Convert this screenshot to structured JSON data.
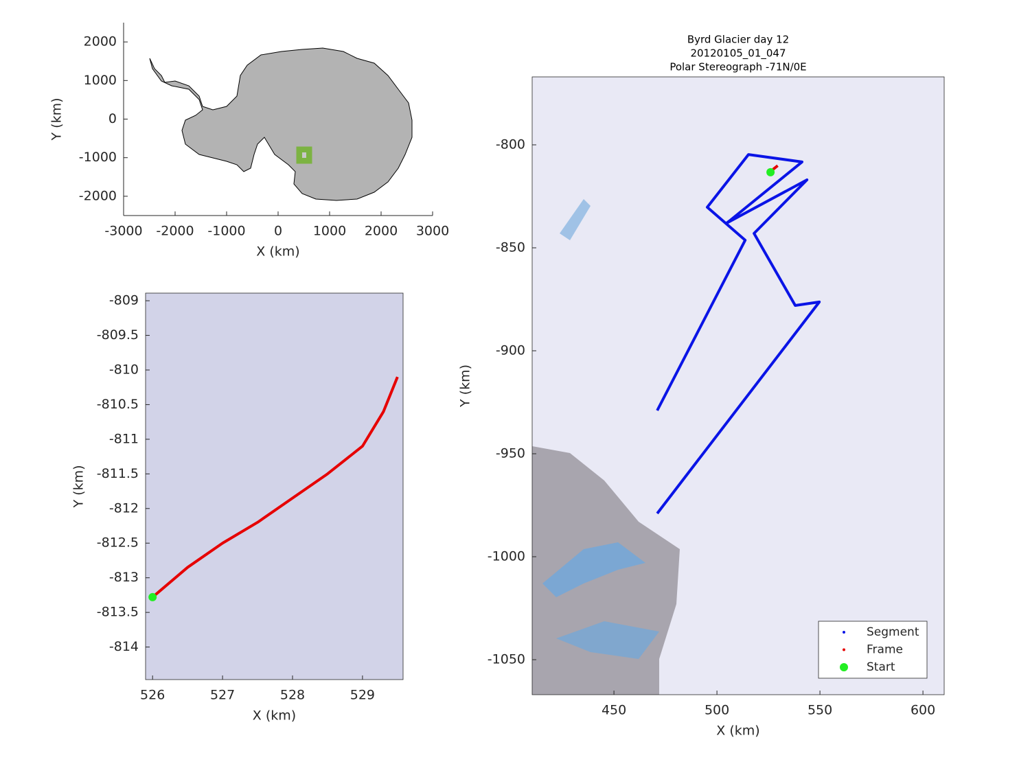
{
  "chart_data": [
    {
      "type": "map",
      "xlabel": "X (km)",
      "ylabel": "Y (km)",
      "xlim": [
        -3000,
        3000
      ],
      "ylim": [
        -2500,
        2500
      ],
      "xticks": [
        -3000,
        -2000,
        -1000,
        0,
        1000,
        2000,
        3000
      ],
      "yticks": [
        -2000,
        -1000,
        0,
        1000,
        2000
      ],
      "box": false,
      "series": []
    },
    {
      "type": "line",
      "xlabel": "X (km)",
      "ylabel": "Y (km)",
      "xlim": [
        525.9,
        529.58
      ],
      "ylim": [
        -814.47,
        -808.89
      ],
      "xticks": [
        526,
        527,
        528,
        529
      ],
      "yticks": [
        -809,
        -809.5,
        -810,
        -810.5,
        -811,
        -811.5,
        -812,
        -812.5,
        -813,
        -813.5,
        -814
      ],
      "box": true,
      "series": [
        {
          "color": "#e60000",
          "style": "line",
          "x": [
            526,
            526.5,
            527,
            527.5,
            528,
            528.5,
            529,
            529.3,
            529.5
          ],
          "values": [
            -813.28,
            -812.85,
            -812.5,
            -812.2,
            -811.85,
            -811.5,
            -811.1,
            -810.6,
            -810.1
          ]
        },
        {
          "color": "#22ee22",
          "style": "point",
          "x": [
            526
          ],
          "values": [
            -813.28
          ]
        }
      ]
    },
    {
      "type": "line",
      "title": [
        "Byrd Glacier day 12",
        "20120105_01_047",
        "Polar Stereograph -71N/0E"
      ],
      "xlabel": "X (km)",
      "ylabel": "Y (km)",
      "xlim": [
        410.3,
        610.3
      ],
      "ylim": [
        -1067,
        -767
      ],
      "xticks": [
        450,
        500,
        550,
        600
      ],
      "yticks": [
        -800,
        -850,
        -900,
        -950,
        -1000,
        -1050
      ],
      "box": true,
      "legend": "lower right",
      "series": [
        {
          "name": "Segment",
          "color": "#0a14e6",
          "style": "line",
          "x": [
            471,
            513.7,
            495.3,
            515.3,
            541.3,
            506,
            504.7,
            543.7,
            518,
            538,
            549.7,
            471
          ],
          "values": [
            -929,
            -846.3,
            -830.3,
            -804.7,
            -808.3,
            -837,
            -838,
            -817,
            -843,
            -878,
            -876.3,
            -979
          ]
        },
        {
          "name": "Frame",
          "color": "#e60000",
          "style": "line",
          "x": [
            526,
            527.5,
            529.5
          ],
          "values": [
            -813.3,
            -811.7,
            -810.1
          ]
        },
        {
          "name": "Start",
          "color": "#22ee22",
          "style": "point",
          "x": [
            526
          ],
          "values": [
            -813.3
          ]
        }
      ]
    }
  ]
}
